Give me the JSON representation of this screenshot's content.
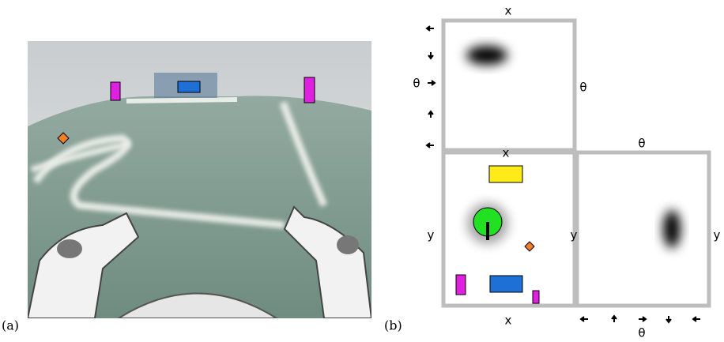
{
  "figure": {
    "label_a": "(a)",
    "label_b": "(b)",
    "top_panel": {
      "top": "x",
      "left": "θ",
      "right": "θ"
    },
    "xy_panel": {
      "top": "x",
      "left": "y",
      "right": "y",
      "bottom": "x"
    },
    "theta_panel": {
      "top": "θ",
      "right": "y",
      "bottom": "θ"
    }
  }
}
